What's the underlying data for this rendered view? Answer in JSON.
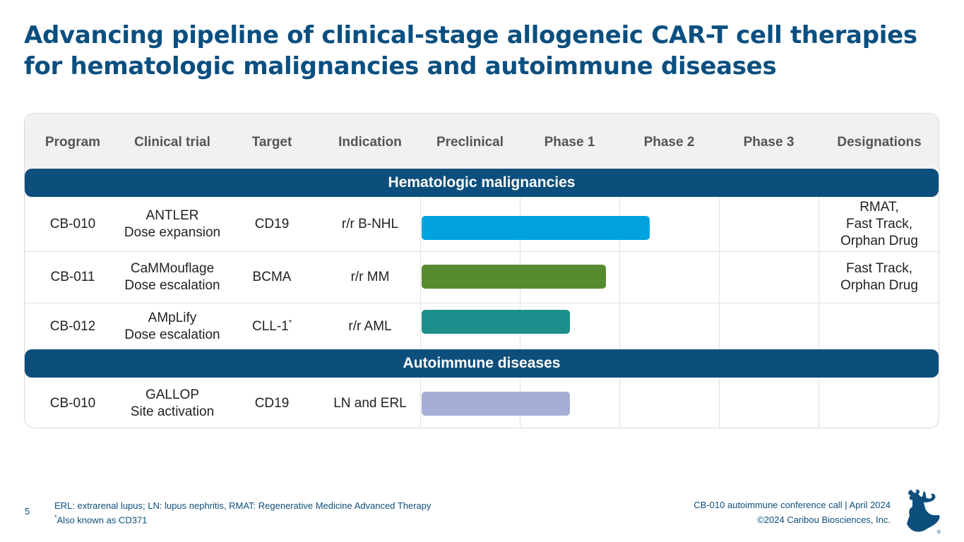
{
  "title": {
    "line1": "Advancing pipeline of clinical-stage allogeneic CAR-T cell therapies",
    "line2": "for hematologic malignancies and autoimmune diseases"
  },
  "table": {
    "headers": [
      "Program",
      "Clinical trial",
      "Target",
      "Indication",
      "Preclinical",
      "Phase 1",
      "Phase 2",
      "Phase 3",
      "Designations"
    ],
    "sections": [
      "Hematologic malignancies",
      "Autoimmune diseases"
    ],
    "rows": [
      {
        "program": "CB-010",
        "trial_name": "ANTLER",
        "trial_stage": "Dose expansion",
        "target": "CD19",
        "target_note": "",
        "indication": "r/r B-NHL",
        "designations": [
          "RMAT,",
          "Fast Track,",
          "Orphan Drug"
        ],
        "progress": 0.58,
        "bar_color": "#00a3e0"
      },
      {
        "program": "CB-011",
        "trial_name": "CaMMouflage",
        "trial_stage": "Dose escalation",
        "target": "BCMA",
        "target_note": "",
        "indication": "r/r MM",
        "designations": [
          "Fast Track,",
          "Orphan Drug"
        ],
        "progress": 0.47,
        "bar_color": "#568a2f"
      },
      {
        "program": "CB-012",
        "trial_name": "AMpLify",
        "trial_stage": "Dose escalation",
        "target": "CLL-1",
        "target_note": "*",
        "indication": "r/r AML",
        "designations": [],
        "progress": 0.38,
        "bar_color": "#1e8e8c"
      },
      {
        "program": "CB-010",
        "trial_name": "GALLOP",
        "trial_stage": "Site activation",
        "target": "CD19",
        "target_note": "",
        "indication": "LN and ERL",
        "designations": [],
        "progress": 0.38,
        "bar_color": "#a5aed6"
      }
    ]
  },
  "footer": {
    "page_number": "5",
    "note1": "ERL: extrarenal lupus; LN: lupus nephritis, RMAT: Regenerative Medicine Advanced Therapy",
    "note2_marker": "*",
    "note2": "Also known as CD371",
    "event": "CB-010 autoimmune conference call | April 2024",
    "copyright": "©2024 Caribou Biosciences, Inc."
  },
  "colors": {
    "brand": "#0d4f7c",
    "title": "#0a4f80"
  },
  "logo": {
    "icon": "caribou-logo-icon",
    "mark": "®"
  }
}
